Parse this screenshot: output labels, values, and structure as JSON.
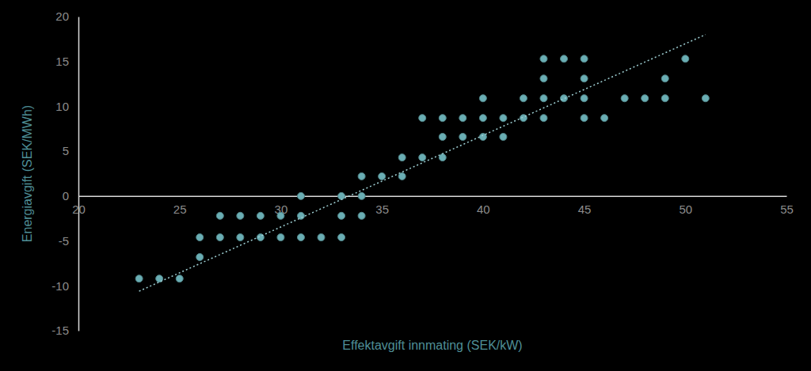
{
  "chart_data": {
    "type": "scatter",
    "x_label": "Effektavgift innmating (SEK/kW)",
    "y_label": "Energiavgift (SEK/MWh)",
    "xlim": [
      20,
      55
    ],
    "xticks": [
      20,
      25,
      30,
      35,
      40,
      45,
      50,
      55
    ],
    "ylim": [
      -15,
      20
    ],
    "yticks": [
      -15,
      -10,
      -5,
      0,
      5,
      10,
      15,
      20
    ],
    "grid": false,
    "series": [
      {
        "type": "scatter",
        "marker": "circle",
        "color": "#6aaeb4",
        "x": [
          23,
          24,
          25,
          26,
          26,
          27,
          28,
          29,
          30,
          31,
          32,
          33,
          27,
          28,
          29,
          30,
          31,
          33,
          34,
          31,
          33,
          34,
          34,
          35,
          36,
          36,
          37,
          38,
          38,
          39,
          40,
          41,
          37,
          38,
          39,
          40,
          41,
          42,
          43,
          45,
          46,
          40,
          42,
          43,
          44,
          45,
          47,
          48,
          49,
          51,
          43,
          45,
          49,
          43,
          44,
          45,
          50
        ],
        "values": [
          -9.2,
          -9.2,
          -9.2,
          -6.8,
          -4.6,
          -4.6,
          -4.6,
          -4.6,
          -4.6,
          -4.6,
          -4.6,
          -4.6,
          -2.2,
          -2.2,
          -2.2,
          -2.2,
          -2.2,
          -2.2,
          -2.2,
          0,
          0,
          0,
          2.2,
          2.2,
          2.2,
          4.3,
          4.3,
          4.3,
          6.6,
          6.6,
          6.6,
          6.6,
          8.7,
          8.7,
          8.7,
          8.7,
          8.7,
          8.7,
          8.7,
          8.7,
          8.7,
          10.9,
          10.9,
          10.9,
          10.9,
          10.9,
          10.9,
          10.9,
          10.9,
          10.9,
          13.1,
          13.1,
          13.1,
          15.3,
          15.3,
          15.3,
          15.3
        ]
      },
      {
        "type": "line",
        "line_style": "dotted",
        "color": "#9fd0d4",
        "x": [
          23,
          51
        ],
        "values": [
          -10.6,
          18.0
        ]
      }
    ]
  }
}
